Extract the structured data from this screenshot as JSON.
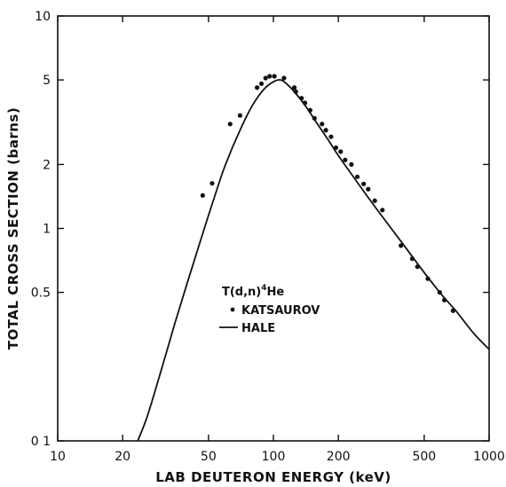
{
  "chart_data": {
    "type": "scatter",
    "xlabel": "LAB DEUTERON ENERGY (keV)",
    "ylabel": "TOTAL CROSS SECTION (barns)",
    "xscale": "log",
    "yscale": "log",
    "xlim": [
      10,
      1000
    ],
    "ylim": [
      0.1,
      10
    ],
    "x_ticks": [
      {
        "value": 10,
        "label": "10"
      },
      {
        "value": 20,
        "label": "20"
      },
      {
        "value": 50,
        "label": "50"
      },
      {
        "value": 100,
        "label": "100"
      },
      {
        "value": 200,
        "label": "200"
      },
      {
        "value": 500,
        "label": "500"
      },
      {
        "value": 1000,
        "label": "1000"
      }
    ],
    "y_ticks": [
      {
        "value": 0.1,
        "label": "0 1"
      },
      {
        "value": 0.5,
        "label": "0.5"
      },
      {
        "value": 1,
        "label": "1"
      },
      {
        "value": 2,
        "label": "2"
      },
      {
        "value": 5,
        "label": "5"
      },
      {
        "value": 10,
        "label": "10"
      }
    ],
    "legend": {
      "title": "T(d,n)",
      "title_sup": "4",
      "title_tail": "He",
      "placement": "center",
      "entries": [
        {
          "label": "KATSAUROV",
          "marker": "dot"
        },
        {
          "label": "HALE",
          "marker": "line"
        }
      ]
    },
    "series": [
      {
        "name": "KATSAUROV",
        "style": "points",
        "x": [
          47,
          52,
          63,
          70,
          84,
          88,
          92,
          96,
          101,
          112,
          125,
          127,
          135,
          140,
          148,
          155,
          168,
          175,
          185,
          195,
          205,
          215,
          230,
          245,
          262,
          275,
          295,
          320,
          390,
          440,
          465,
          520,
          590,
          620,
          680
        ],
        "y": [
          1.43,
          1.63,
          3.1,
          3.4,
          4.6,
          4.8,
          5.1,
          5.2,
          5.2,
          5.1,
          4.6,
          4.4,
          4.1,
          3.9,
          3.6,
          3.3,
          3.1,
          2.9,
          2.7,
          2.4,
          2.3,
          2.1,
          2.0,
          1.75,
          1.62,
          1.53,
          1.35,
          1.22,
          0.83,
          0.72,
          0.66,
          0.58,
          0.5,
          0.46,
          0.41
        ]
      },
      {
        "name": "HALE",
        "style": "line",
        "x": [
          23.5,
          26,
          30,
          35,
          40,
          45,
          50,
          55,
          60,
          70,
          80,
          90,
          100,
          108,
          115,
          125,
          140,
          160,
          180,
          200,
          250,
          300,
          400,
          500,
          600,
          700,
          850,
          1000
        ],
        "y": [
          0.1,
          0.13,
          0.21,
          0.36,
          0.56,
          0.82,
          1.15,
          1.55,
          2.0,
          2.9,
          3.8,
          4.5,
          4.9,
          5.0,
          4.8,
          4.4,
          3.8,
          3.1,
          2.6,
          2.2,
          1.6,
          1.24,
          0.84,
          0.62,
          0.49,
          0.41,
          0.32,
          0.27
        ]
      }
    ],
    "grid": false,
    "colors": {
      "ink": "#111111",
      "background": "#ffffff"
    }
  }
}
